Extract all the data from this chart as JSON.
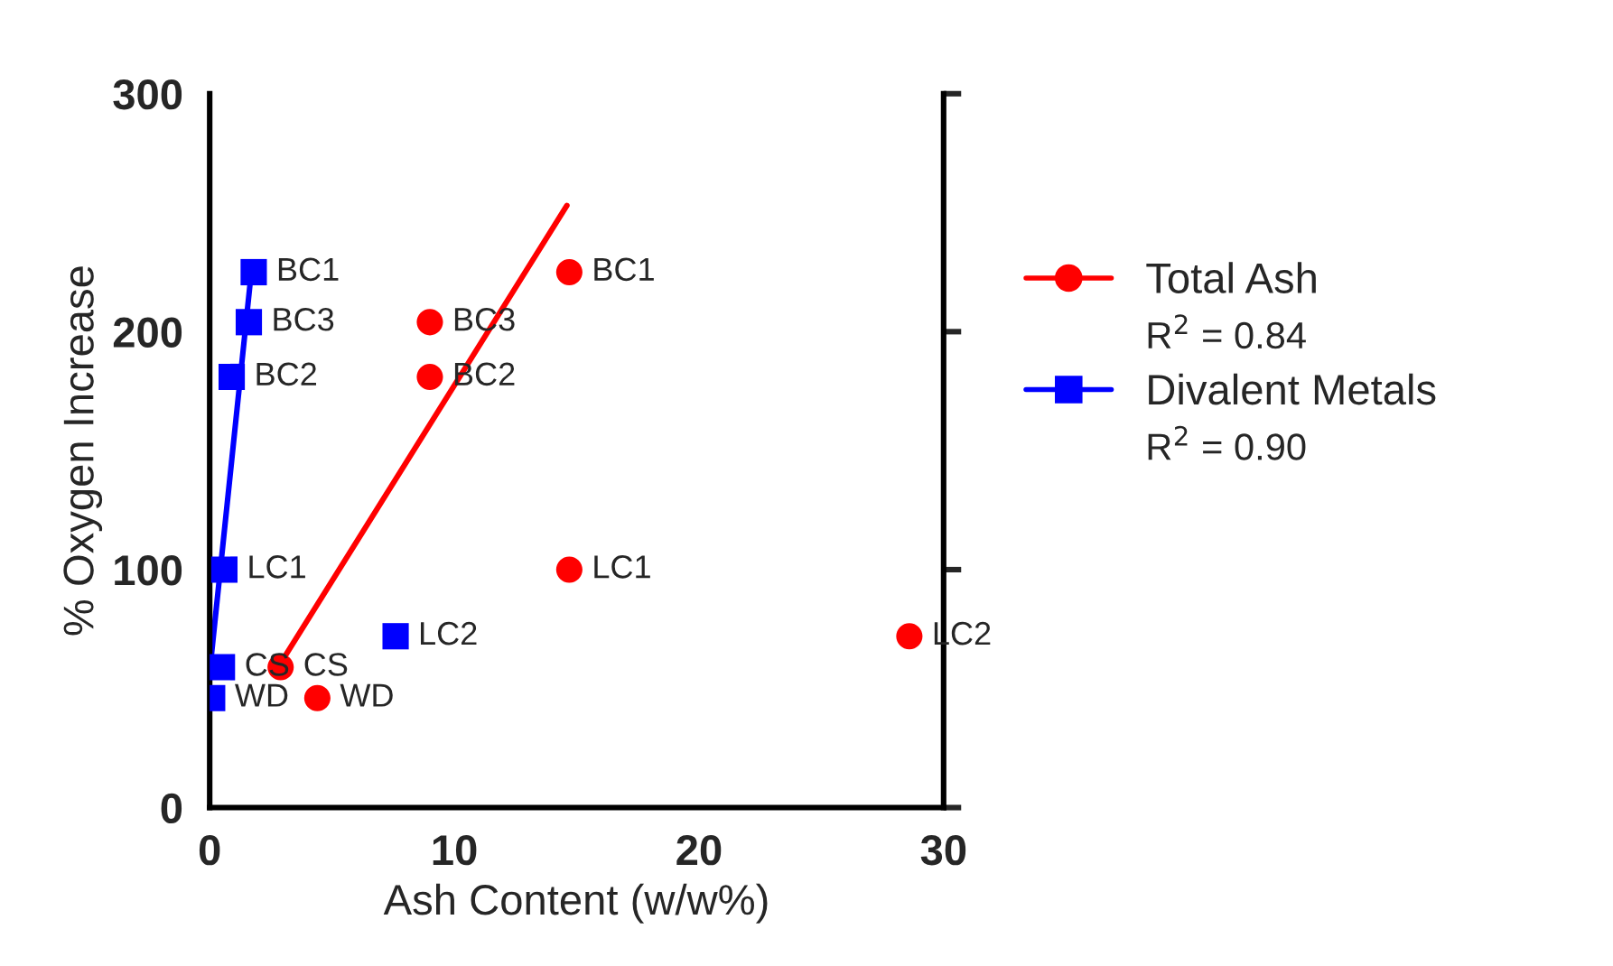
{
  "chart_data": {
    "type": "scatter",
    "xlabel": "Ash Content (w/w%)",
    "ylabel": "% Oxygen Increase",
    "xlim": [
      0,
      30
    ],
    "xticks": [
      0,
      10,
      20,
      30
    ],
    "ylim": [
      0,
      300
    ],
    "yticks": [
      0,
      100,
      200,
      300
    ],
    "grid": false,
    "legend": "right",
    "series": [
      {
        "name": "Total Ash",
        "color": "#ff0000",
        "marker": "circle",
        "x": [
          14.7,
          9.0,
          9.0,
          14.7,
          28.6,
          2.9,
          4.4
        ],
        "values": [
          225,
          204,
          181,
          100,
          72,
          59,
          46
        ]
      },
      {
        "name": "Divalent Metals",
        "color": "#0000ff",
        "marker": "square",
        "x": [
          1.8,
          1.6,
          0.9,
          0.6,
          7.6,
          0.5,
          0.1
        ],
        "values": [
          225,
          204,
          181,
          100,
          72,
          59,
          46
        ]
      },
      {
        "type": "line",
        "color": "#ff0000",
        "marker": "none",
        "x": [
          3.1,
          14.6
        ],
        "values": [
          64,
          253
        ]
      },
      {
        "type": "line",
        "color": "#0000ff",
        "marker": "none",
        "x": [
          0.05,
          1.7
        ],
        "values": [
          62,
          225
        ]
      }
    ],
    "annotations": [
      "R$^{2}$ = 0.84",
      "R$^{2}$ = 0.90",
      {
        "text": "BC1",
        "x": 14.7,
        "y": 225
      },
      {
        "text": "BC3",
        "x": 9.0,
        "y": 204
      },
      {
        "text": "BC2",
        "x": 9.0,
        "y": 181
      },
      {
        "text": "LC1",
        "x": 14.7,
        "y": 100
      },
      {
        "text": "LC2",
        "x": 28.6,
        "y": 72
      },
      {
        "text": "CS",
        "x": 2.9,
        "y": 59
      },
      {
        "text": "WD",
        "x": 4.4,
        "y": 46
      },
      {
        "text": "BC1",
        "x": 1.8,
        "y": 225
      },
      {
        "text": "BC3",
        "x": 1.6,
        "y": 204
      },
      {
        "text": "BC2",
        "x": 0.9,
        "y": 181
      },
      {
        "text": "LC1",
        "x": 0.6,
        "y": 100
      },
      {
        "text": "LC2",
        "x": 7.6,
        "y": 72
      },
      {
        "text": "CS",
        "x": 0.5,
        "y": 59
      },
      {
        "text": "WD",
        "x": 0.1,
        "y": 46
      }
    ]
  }
}
